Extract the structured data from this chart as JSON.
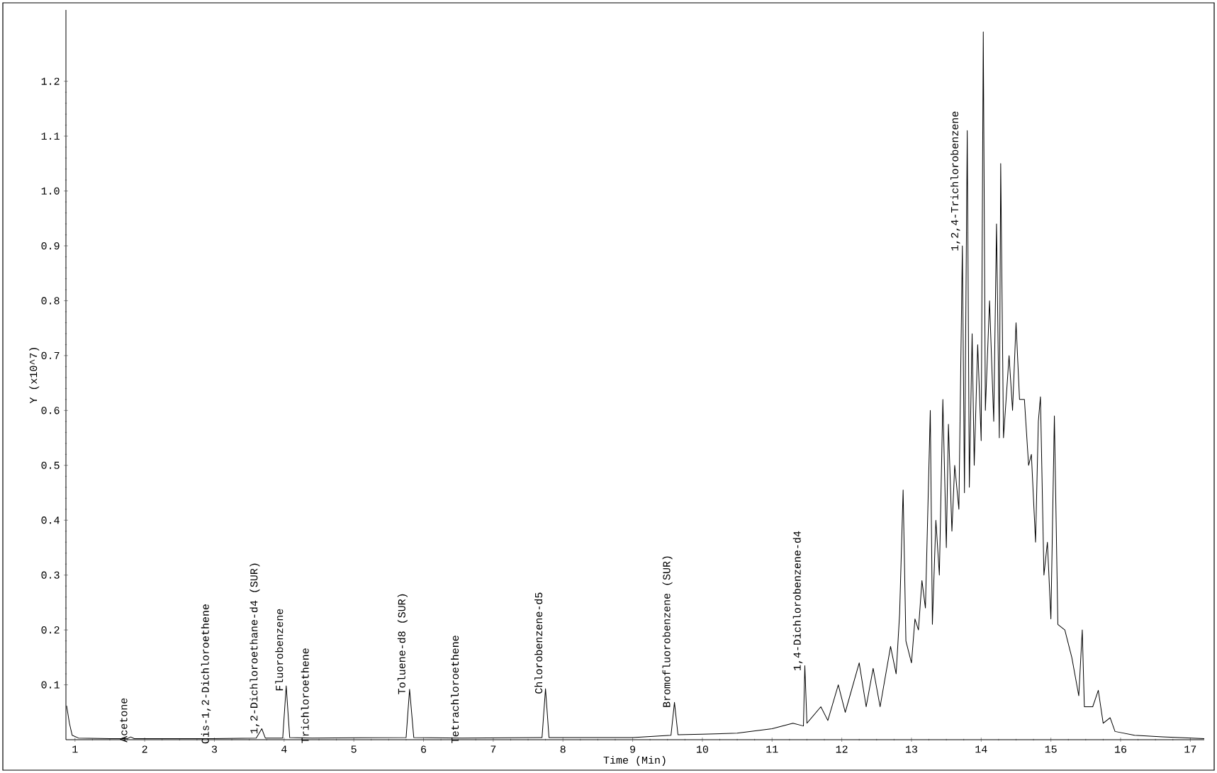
{
  "chart_data": {
    "type": "line",
    "xlabel": "Time (Min)",
    "ylabel": "Y (x10^7)",
    "color": "#000000",
    "grid": false,
    "marker": "none",
    "line_style": "solid",
    "xlim": [
      0.87,
      17.2
    ],
    "ylim": [
      0,
      1.33
    ],
    "xticks": [
      1,
      2,
      3,
      4,
      5,
      6,
      7,
      8,
      9,
      10,
      11,
      12,
      13,
      14,
      15,
      16,
      17
    ],
    "yticks": [
      0.1,
      0.2,
      0.3,
      0.4,
      0.5,
      0.6,
      0.7,
      0.8,
      0.9,
      {
        "value": 1.0,
        "label": "1.0"
      },
      1.1,
      1.2
    ],
    "x": [
      0.88,
      0.92,
      0.96,
      1.05,
      1.5,
      1.75,
      1.8,
      1.85,
      2.98,
      3.6,
      3.68,
      3.73,
      3.98,
      4.03,
      4.08,
      4.4,
      5.75,
      5.8,
      5.86,
      6.55,
      7.7,
      7.75,
      7.8,
      9.0,
      9.55,
      9.6,
      9.65,
      10.0,
      10.5,
      11.0,
      11.3,
      11.45,
      11.47,
      11.5,
      11.7,
      11.8,
      11.95,
      12.05,
      12.25,
      12.35,
      12.45,
      12.55,
      12.7,
      12.78,
      12.83,
      12.88,
      12.92,
      13.0,
      13.05,
      13.1,
      13.15,
      13.2,
      13.27,
      13.3,
      13.35,
      13.4,
      13.45,
      13.5,
      13.53,
      13.58,
      13.62,
      13.68,
      13.73,
      13.76,
      13.8,
      13.83,
      13.87,
      13.9,
      13.95,
      14.0,
      14.03,
      14.06,
      14.12,
      14.18,
      14.22,
      14.26,
      14.28,
      14.32,
      14.4,
      14.45,
      14.5,
      14.55,
      14.62,
      14.68,
      14.72,
      14.78,
      14.82,
      14.85,
      14.9,
      14.95,
      15.0,
      15.05,
      15.1,
      15.2,
      15.3,
      15.4,
      15.45,
      15.48,
      15.6,
      15.68,
      15.75,
      15.85,
      15.92,
      16.2,
      16.6,
      17.2
    ],
    "values": [
      0.062,
      0.03,
      0.008,
      0.003,
      0.002,
      0.002,
      0.005,
      0.002,
      0.002,
      0.003,
      0.02,
      0.003,
      0.003,
      0.098,
      0.004,
      0.003,
      0.004,
      0.092,
      0.004,
      0.003,
      0.004,
      0.093,
      0.004,
      0.004,
      0.008,
      0.068,
      0.009,
      0.01,
      0.012,
      0.02,
      0.03,
      0.025,
      0.135,
      0.03,
      0.06,
      0.035,
      0.1,
      0.05,
      0.14,
      0.06,
      0.13,
      0.06,
      0.17,
      0.12,
      0.23,
      0.455,
      0.18,
      0.14,
      0.22,
      0.2,
      0.29,
      0.24,
      0.6,
      0.21,
      0.4,
      0.3,
      0.62,
      0.35,
      0.575,
      0.38,
      0.5,
      0.42,
      0.9,
      0.45,
      1.11,
      0.46,
      0.74,
      0.5,
      0.72,
      0.545,
      1.29,
      0.6,
      0.8,
      0.58,
      0.94,
      0.55,
      1.05,
      0.55,
      0.7,
      0.6,
      0.76,
      0.62,
      0.62,
      0.5,
      0.52,
      0.36,
      0.58,
      0.625,
      0.3,
      0.36,
      0.22,
      0.59,
      0.21,
      0.2,
      0.15,
      0.08,
      0.2,
      0.06,
      0.06,
      0.09,
      0.03,
      0.04,
      0.015,
      0.008,
      0.005,
      0.002
    ],
    "annotations": [
      {
        "text": "Acetone",
        "x": 1.8,
        "y": 0.005
      },
      {
        "text": "Cis-1,2-Dichloroethene",
        "x": 2.98,
        "y": 0.002
      },
      {
        "text": "1,2-Dichloroethane-d4 (SUR)",
        "x": 3.68,
        "y": 0.02
      },
      {
        "text": "Fluorobenzene",
        "x": 4.03,
        "y": 0.098
      },
      {
        "text": "Trichloroethene",
        "x": 4.4,
        "y": 0.003
      },
      {
        "text": "Toluene-d8 (SUR)",
        "x": 5.8,
        "y": 0.092
      },
      {
        "text": "Tetrachloroethene",
        "x": 6.55,
        "y": 0.003
      },
      {
        "text": "Chlorobenzene-d5",
        "x": 7.75,
        "y": 0.093
      },
      {
        "text": "Bromofluorobenzene (SUR)",
        "x": 9.6,
        "y": 0.068
      },
      {
        "text": "1,4-Dichlorobenzene-d4",
        "x": 11.47,
        "y": 0.135
      },
      {
        "text": "1,2,4-Trichlorobenzene",
        "x": 13.73,
        "y": 0.9
      }
    ]
  }
}
